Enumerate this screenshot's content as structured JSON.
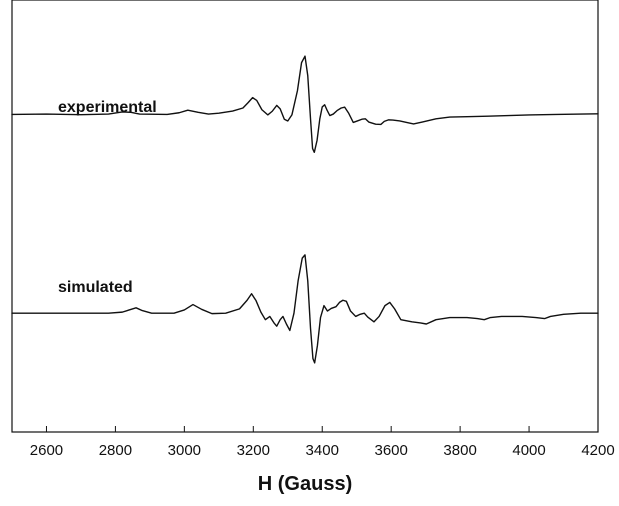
{
  "chart_data": {
    "type": "line",
    "title": "",
    "xlabel": "H (Gauss)",
    "ylabel": "",
    "xlim": [
      2500,
      4200
    ],
    "ylim": [
      -1.0,
      1.0
    ],
    "x_ticks": [
      2600,
      2800,
      3000,
      3200,
      3400,
      3600,
      3800,
      4000,
      4200
    ],
    "x_tick_labels": [
      "2600",
      "2800",
      "3000",
      "3200",
      "3400",
      "3600",
      "3800",
      "4000",
      "4200"
    ],
    "y_ticks_shown": false,
    "grid": false,
    "legend": "none",
    "line_color": "#111111",
    "series": [
      {
        "name": "experimental",
        "baseline": 0.47,
        "points": [
          [
            2500,
            0.47
          ],
          [
            2600,
            0.472
          ],
          [
            2700,
            0.469
          ],
          [
            2780,
            0.472
          ],
          [
            2820,
            0.482
          ],
          [
            2845,
            0.48
          ],
          [
            2870,
            0.472
          ],
          [
            2950,
            0.47
          ],
          [
            2985,
            0.478
          ],
          [
            3010,
            0.49
          ],
          [
            3040,
            0.48
          ],
          [
            3070,
            0.472
          ],
          [
            3100,
            0.476
          ],
          [
            3140,
            0.486
          ],
          [
            3170,
            0.5
          ],
          [
            3185,
            0.525
          ],
          [
            3198,
            0.548
          ],
          [
            3210,
            0.535
          ],
          [
            3225,
            0.492
          ],
          [
            3242,
            0.468
          ],
          [
            3255,
            0.485
          ],
          [
            3268,
            0.512
          ],
          [
            3278,
            0.496
          ],
          [
            3290,
            0.448
          ],
          [
            3300,
            0.44
          ],
          [
            3312,
            0.468
          ],
          [
            3328,
            0.58
          ],
          [
            3340,
            0.71
          ],
          [
            3350,
            0.74
          ],
          [
            3358,
            0.65
          ],
          [
            3366,
            0.45
          ],
          [
            3372,
            0.312
          ],
          [
            3377,
            0.295
          ],
          [
            3385,
            0.35
          ],
          [
            3393,
            0.45
          ],
          [
            3400,
            0.505
          ],
          [
            3407,
            0.515
          ],
          [
            3414,
            0.49
          ],
          [
            3422,
            0.465
          ],
          [
            3432,
            0.472
          ],
          [
            3443,
            0.488
          ],
          [
            3455,
            0.5
          ],
          [
            3465,
            0.504
          ],
          [
            3477,
            0.475
          ],
          [
            3490,
            0.433
          ],
          [
            3502,
            0.44
          ],
          [
            3515,
            0.448
          ],
          [
            3525,
            0.45
          ],
          [
            3535,
            0.435
          ],
          [
            3555,
            0.425
          ],
          [
            3570,
            0.424
          ],
          [
            3580,
            0.438
          ],
          [
            3592,
            0.445
          ],
          [
            3605,
            0.444
          ],
          [
            3625,
            0.44
          ],
          [
            3648,
            0.432
          ],
          [
            3665,
            0.426
          ],
          [
            3690,
            0.435
          ],
          [
            3730,
            0.45
          ],
          [
            3770,
            0.458
          ],
          [
            3820,
            0.46
          ],
          [
            3880,
            0.462
          ],
          [
            3940,
            0.465
          ],
          [
            4000,
            0.468
          ],
          [
            4080,
            0.47
          ],
          [
            4150,
            0.472
          ],
          [
            4200,
            0.473
          ]
        ]
      },
      {
        "name": "simulated",
        "baseline": -0.45,
        "points": [
          [
            2500,
            -0.45
          ],
          [
            2780,
            -0.45
          ],
          [
            2820,
            -0.445
          ],
          [
            2840,
            -0.435
          ],
          [
            2860,
            -0.425
          ],
          [
            2878,
            -0.438
          ],
          [
            2905,
            -0.45
          ],
          [
            2970,
            -0.45
          ],
          [
            3000,
            -0.435
          ],
          [
            3025,
            -0.41
          ],
          [
            3050,
            -0.432
          ],
          [
            3080,
            -0.452
          ],
          [
            3120,
            -0.45
          ],
          [
            3160,
            -0.43
          ],
          [
            3182,
            -0.39
          ],
          [
            3195,
            -0.36
          ],
          [
            3208,
            -0.392
          ],
          [
            3222,
            -0.445
          ],
          [
            3235,
            -0.48
          ],
          [
            3248,
            -0.465
          ],
          [
            3260,
            -0.495
          ],
          [
            3268,
            -0.51
          ],
          [
            3278,
            -0.48
          ],
          [
            3286,
            -0.465
          ],
          [
            3296,
            -0.5
          ],
          [
            3306,
            -0.53
          ],
          [
            3318,
            -0.45
          ],
          [
            3330,
            -0.3
          ],
          [
            3342,
            -0.195
          ],
          [
            3350,
            -0.18
          ],
          [
            3358,
            -0.3
          ],
          [
            3366,
            -0.52
          ],
          [
            3373,
            -0.66
          ],
          [
            3378,
            -0.68
          ],
          [
            3386,
            -0.6
          ],
          [
            3395,
            -0.47
          ],
          [
            3405,
            -0.415
          ],
          [
            3415,
            -0.44
          ],
          [
            3426,
            -0.428
          ],
          [
            3440,
            -0.42
          ],
          [
            3450,
            -0.4
          ],
          [
            3460,
            -0.39
          ],
          [
            3470,
            -0.395
          ],
          [
            3482,
            -0.44
          ],
          [
            3497,
            -0.465
          ],
          [
            3510,
            -0.455
          ],
          [
            3522,
            -0.45
          ],
          [
            3532,
            -0.468
          ],
          [
            3550,
            -0.49
          ],
          [
            3565,
            -0.465
          ],
          [
            3582,
            -0.415
          ],
          [
            3596,
            -0.4
          ],
          [
            3610,
            -0.43
          ],
          [
            3628,
            -0.48
          ],
          [
            3660,
            -0.49
          ],
          [
            3685,
            -0.495
          ],
          [
            3702,
            -0.5
          ],
          [
            3730,
            -0.48
          ],
          [
            3770,
            -0.47
          ],
          [
            3820,
            -0.47
          ],
          [
            3850,
            -0.475
          ],
          [
            3870,
            -0.48
          ],
          [
            3888,
            -0.47
          ],
          [
            3920,
            -0.465
          ],
          [
            3980,
            -0.465
          ],
          [
            4020,
            -0.47
          ],
          [
            4045,
            -0.475
          ],
          [
            4062,
            -0.465
          ],
          [
            4100,
            -0.455
          ],
          [
            4150,
            -0.45
          ],
          [
            4200,
            -0.45
          ]
        ]
      }
    ],
    "annotations": [
      "experimental",
      "simulated"
    ]
  }
}
